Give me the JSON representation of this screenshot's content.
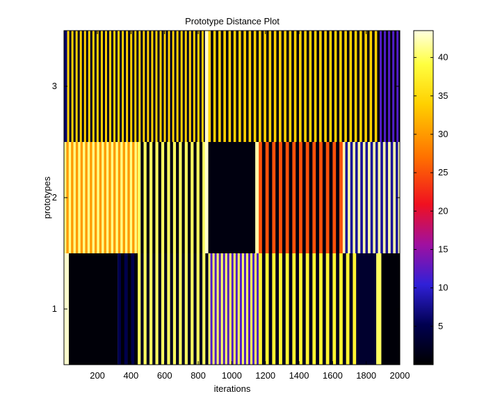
{
  "chart_data": {
    "type": "heatmap",
    "title": "Prototype Distance Plot",
    "xlabel": "iterations",
    "ylabel": "prototypes",
    "xlim": [
      1,
      2000
    ],
    "x_ticks": [
      "200",
      "400",
      "600",
      "800",
      "1000",
      "1200",
      "1400",
      "1600",
      "1800",
      "2000"
    ],
    "y_ticks": [
      "3",
      "2",
      "1"
    ],
    "colormap": "hot",
    "colorbar": {
      "range": [
        0,
        43.5
      ],
      "ticks": [
        "40",
        "35",
        "30",
        "25",
        "20",
        "15",
        "10",
        "5"
      ]
    },
    "rows": [
      {
        "prototype": "3",
        "segments": [
          {
            "x": [
              1,
              20
            ],
            "v": 6
          },
          {
            "x": [
              20,
              840
            ],
            "v_low": 2,
            "v_high": 34,
            "period": 25
          },
          {
            "x": [
              840,
              860
            ],
            "v": 43
          },
          {
            "x": [
              860,
              1880
            ],
            "v_low": 1,
            "v_high": 34,
            "period": 30
          },
          {
            "x": [
              1880,
              2000
            ],
            "v_low": 1,
            "v_high": 12,
            "period": 25
          }
        ]
      },
      {
        "prototype": "2",
        "segments": [
          {
            "x": [
              1,
              440
            ],
            "v_low": 30,
            "v_high": 41,
            "period": 28
          },
          {
            "x": [
              440,
              840
            ],
            "v_low": 1,
            "v_high": 40,
            "period": 35
          },
          {
            "x": [
              840,
              860
            ],
            "v": 43
          },
          {
            "x": [
              860,
              1140
            ],
            "v": 1
          },
          {
            "x": [
              1140,
              1160
            ],
            "v": 42
          },
          {
            "x": [
              1160,
              1660
            ],
            "v_low": 1,
            "v_high": 25,
            "period": 40
          },
          {
            "x": [
              1660,
              2000
            ],
            "v_low": 8,
            "v_high": 42,
            "period": 30
          }
        ]
      },
      {
        "prototype": "1",
        "segments": [
          {
            "x": [
              1,
              30
            ],
            "v": 43
          },
          {
            "x": [
              30,
              320
            ],
            "v": 0.5
          },
          {
            "x": [
              320,
              440
            ],
            "v_low": 0.5,
            "v_high": 5,
            "period": 40
          },
          {
            "x": [
              440,
              860
            ],
            "v_low": 2,
            "v_high": 40,
            "period": 35
          },
          {
            "x": [
              860,
              1160
            ],
            "v_low": 12,
            "v_high": 40,
            "period": 25
          },
          {
            "x": [
              1160,
              1740
            ],
            "v_low": 2,
            "v_high": 38,
            "period": 40
          },
          {
            "x": [
              1740,
              1860
            ],
            "v": 3
          },
          {
            "x": [
              1860,
              1890
            ],
            "v": 40
          },
          {
            "x": [
              1890,
              2000
            ],
            "v": 0.5
          }
        ]
      }
    ]
  }
}
